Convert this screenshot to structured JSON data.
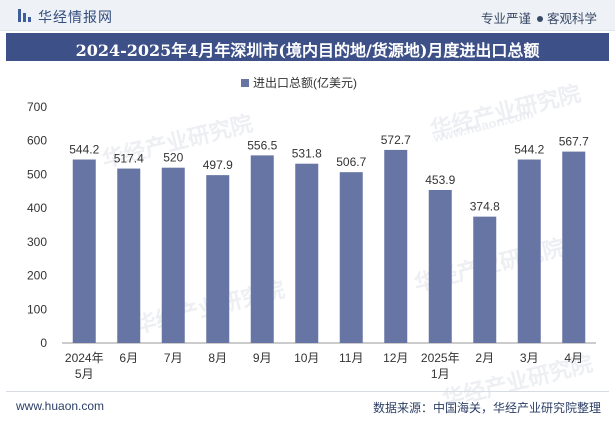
{
  "header": {
    "brand": "华经情报网",
    "slogan_part1": "专业严谨",
    "slogan_part2": "客观科学"
  },
  "title": "2024-2025年4月年深圳市(境内目的地/货源地)月度进出口总额",
  "legend_label": "进出口总额(亿美元)",
  "watermark": "华经产业研究院",
  "watermark_url": "www.huaon.com",
  "footer": {
    "website": "www.huaon.com",
    "source": "数据来源：中国海关，华经产业研究院整理"
  },
  "colors": {
    "bar": "#6675a3",
    "title_band": "#3d5088",
    "axis": "#333333"
  },
  "chart_data": {
    "type": "bar",
    "categories": [
      "2024年\n5月",
      "6月",
      "7月",
      "8月",
      "9月",
      "10月",
      "11月",
      "12月",
      "2025年\n1月",
      "2月",
      "3月",
      "4月"
    ],
    "series": [
      {
        "name": "进出口总额(亿美元)",
        "values": [
          544.2,
          517.4,
          520,
          497.9,
          556.5,
          531.8,
          506.7,
          572.7,
          453.9,
          374.8,
          544.2,
          567.7
        ]
      }
    ],
    "value_labels": [
      "544.2",
      "517.4",
      "520",
      "497.9",
      "556.5",
      "531.8",
      "506.7",
      "572.7",
      "453.9",
      "374.8",
      "544.2",
      "567.7"
    ],
    "yticks": [
      "0",
      "100",
      "200",
      "300",
      "400",
      "500",
      "600",
      "700"
    ],
    "ylim": [
      0,
      700
    ],
    "grid": false,
    "legend_position": "top-center"
  }
}
